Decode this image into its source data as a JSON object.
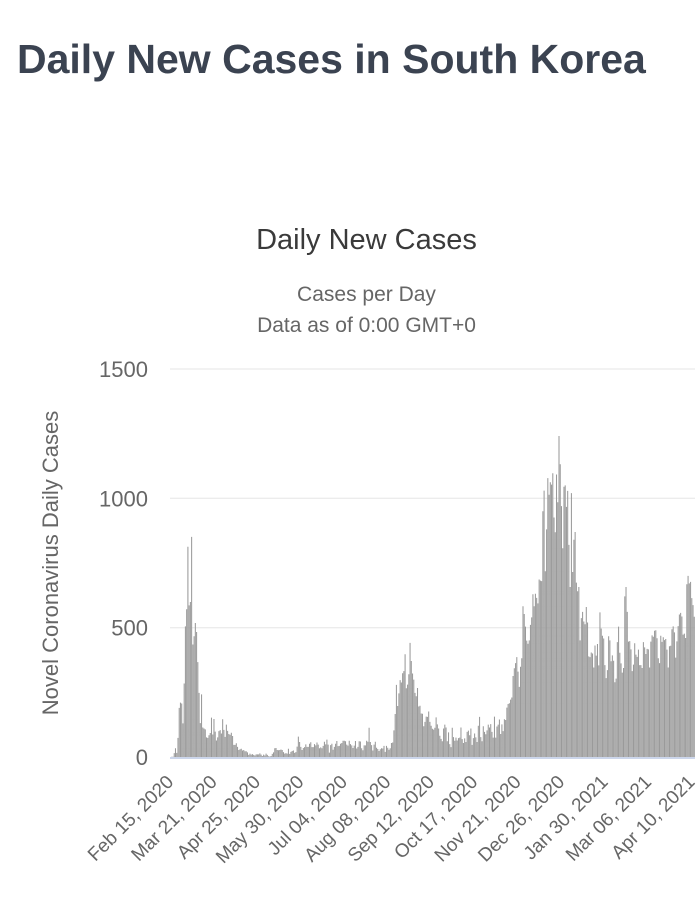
{
  "page": {
    "title": "Daily New Cases in South Korea"
  },
  "chart_data": {
    "type": "bar",
    "title": "Daily New Cases",
    "subtitle_line1": "Cases per Day",
    "subtitle_line2": "Data as of 0:00 GMT+0",
    "ylabel": "Novel Coronavirus Daily Cases",
    "xlabel": "",
    "ylim": [
      0,
      1500
    ],
    "yticks": [
      0,
      500,
      1000,
      1500
    ],
    "grid": true,
    "legend": false,
    "bar_color": "#9a9a9a",
    "grid_color": "#e6e6e6",
    "axis_line_color": "#ccd6eb",
    "label_color": "#666666",
    "x_start_date": "2020-02-15",
    "x_tick_interval_days": 35,
    "x_tick_labels": [
      "Feb 15, 2020",
      "Mar 21, 2020",
      "Apr 25, 2020",
      "May 30, 2020",
      "Jul 04, 2020",
      "Aug 08, 2020",
      "Sep 12, 2020",
      "Oct 17, 2020",
      "Nov 21, 2020",
      "Dec 26, 2020",
      "Jan 30, 2021",
      "Mar 06, 2021",
      "Apr 10, 2021"
    ],
    "values": [
      0,
      1,
      1,
      15,
      34,
      16,
      74,
      190,
      210,
      207,
      130,
      284,
      505,
      571,
      813,
      586,
      599,
      851,
      435,
      467,
      518,
      483,
      367,
      248,
      131,
      242,
      114,
      110,
      107,
      76,
      74,
      84,
      93,
      152,
      87,
      147,
      98,
      64,
      76,
      100,
      104,
      91,
      146,
      105,
      78,
      125,
      101,
      89,
      86,
      94,
      81,
      47,
      47,
      53,
      39,
      27,
      30,
      32,
      25,
      27,
      22,
      22,
      18,
      8,
      13,
      9,
      11,
      8,
      6,
      10,
      10,
      10,
      14,
      9,
      4,
      9,
      6,
      13,
      8,
      3,
      2,
      4,
      12,
      18,
      34,
      35,
      27,
      26,
      27,
      29,
      27,
      19,
      13,
      15,
      13,
      32,
      12,
      20,
      23,
      25,
      16,
      19,
      40,
      79,
      58,
      39,
      27,
      35,
      38,
      49,
      39,
      39,
      51,
      57,
      38,
      38,
      50,
      45,
      56,
      48,
      34,
      37,
      34,
      43,
      59,
      49,
      67,
      48,
      17,
      46,
      51,
      28,
      39,
      51,
      62,
      42,
      43,
      51,
      54,
      63,
      63,
      61,
      48,
      44,
      63,
      50,
      45,
      35,
      44,
      62,
      33,
      39,
      61,
      60,
      34,
      26,
      45,
      45,
      63,
      59,
      113,
      58,
      46,
      25,
      48,
      59,
      36,
      31,
      23,
      30,
      34,
      33,
      43,
      20,
      43,
      36,
      28,
      34,
      54,
      56,
      103,
      166,
      279,
      197,
      246,
      297,
      288,
      324,
      332,
      397,
      266,
      280,
      320,
      441,
      371,
      323,
      299,
      248,
      235,
      267,
      195,
      198,
      168,
      167,
      119,
      136,
      156,
      155,
      176,
      136,
      121,
      109,
      106,
      113,
      153,
      126,
      110,
      82,
      70,
      61,
      110,
      125,
      114,
      61,
      95,
      50,
      38,
      113,
      77,
      63,
      75,
      64,
      73,
      75,
      114,
      69,
      54,
      72,
      58,
      97,
      102,
      84,
      110,
      47,
      73,
      91,
      76,
      58,
      121,
      155,
      77,
      61,
      119,
      97,
      88,
      103,
      125,
      114,
      127,
      97,
      75,
      156,
      75,
      118,
      125,
      145,
      89,
      126,
      100,
      146,
      143,
      191,
      205,
      208,
      222,
      230,
      313,
      343,
      363,
      386,
      330,
      271,
      349,
      382,
      583,
      553,
      504,
      450,
      438,
      451,
      511,
      540,
      629,
      583,
      631,
      615,
      594,
      686,
      682,
      680,
      950,
      1030,
      718,
      880,
      1078,
      1014,
      1062,
      1053,
      1097,
      926,
      869,
      1092,
      985,
      1241,
      1132,
      970,
      807,
      1045,
      1050,
      967,
      1029,
      820,
      657,
      1020,
      715,
      840,
      870,
      674,
      641,
      657,
      451,
      537,
      561,
      524,
      513,
      580,
      520,
      389,
      386,
      404,
      400,
      346,
      431,
      392,
      437,
      354,
      559,
      497,
      469,
      458,
      355,
      305,
      336,
      467,
      451,
      370,
      393,
      372,
      289,
      303,
      444,
      504,
      403,
      362,
      326,
      344,
      621,
      657,
      561,
      446,
      448,
      416,
      332,
      357,
      440,
      396,
      387,
      415,
      355,
      355,
      344,
      444,
      424,
      398,
      418,
      416,
      346,
      446,
      470,
      465,
      488,
      490,
      459,
      382,
      363,
      469,
      445,
      463,
      452,
      456,
      415,
      346,
      428,
      430,
      494,
      505,
      482,
      384,
      447,
      506,
      551,
      557,
      543,
      473,
      477,
      460,
      668,
      700,
      671,
      677,
      614,
      587,
      542
    ]
  }
}
